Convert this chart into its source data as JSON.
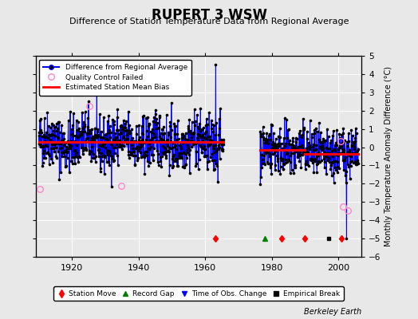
{
  "title": "RUPERT 3 WSW",
  "subtitle": "Difference of Station Temperature Data from Regional Average",
  "ylabel": "Monthly Temperature Anomaly Difference (°C)",
  "credit": "Berkeley Earth",
  "ylim": [
    -6,
    5
  ],
  "yticks": [
    -6,
    -5,
    -4,
    -3,
    -2,
    -1,
    0,
    1,
    2,
    3,
    4,
    5
  ],
  "xlim": [
    1909,
    2007
  ],
  "xticks": [
    1920,
    1940,
    1960,
    1980,
    2000
  ],
  "bg_color": "#e8e8e8",
  "plot_bg_color": "#e8e8e8",
  "segment1_start": 1910.0,
  "segment1_end": 1965.5,
  "segment2_start": 1976.5,
  "segment2_end": 2006.0,
  "bias1": 0.28,
  "bias2_a": -0.15,
  "bias2_break": 1990.0,
  "bias2_b": -0.38,
  "station_moves": [
    1963,
    1983,
    1990,
    2001
  ],
  "record_gaps": [
    1978
  ],
  "empirical_breaks": [
    1997
  ],
  "seed": 42
}
